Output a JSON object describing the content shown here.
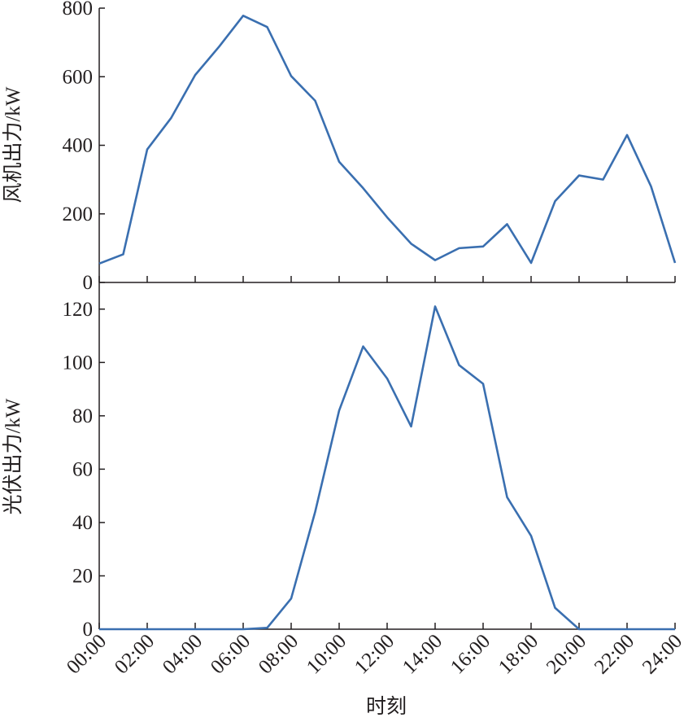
{
  "chart_data": [
    {
      "type": "line",
      "ylabel": "风机出力/kW",
      "ylim": [
        0,
        800
      ],
      "yticks": [
        0,
        200,
        400,
        600,
        800
      ],
      "xlim": [
        0,
        24
      ],
      "x": [
        0,
        1,
        2,
        3,
        4,
        5,
        6,
        7,
        8,
        9,
        10,
        11,
        12,
        13,
        14,
        15,
        16,
        17,
        18,
        19,
        20,
        21,
        22,
        23,
        24
      ],
      "series": [
        {
          "values": [
            55,
            82,
            388,
            480,
            605,
            688,
            778,
            745,
            602,
            530,
            352,
            275,
            190,
            113,
            65,
            100,
            105,
            170,
            57,
            237,
            312,
            300,
            430,
            280,
            57
          ]
        }
      ],
      "color": "#3a6fb0"
    },
    {
      "type": "line",
      "ylabel": "光伏出力/kW",
      "xlabel": "时刻",
      "ylim": [
        0,
        130
      ],
      "yticks": [
        0,
        20,
        40,
        60,
        80,
        100,
        120
      ],
      "xlim": [
        0,
        24
      ],
      "x": [
        0,
        1,
        2,
        3,
        4,
        5,
        6,
        7,
        8,
        9,
        10,
        11,
        12,
        13,
        14,
        15,
        16,
        17,
        18,
        19,
        20,
        21,
        22,
        23,
        24
      ],
      "xticklabels": [
        "00:00",
        "02:00",
        "04:00",
        "06:00",
        "08:00",
        "10:00",
        "12:00",
        "14:00",
        "16:00",
        "18:00",
        "20:00",
        "22:00",
        "24:00"
      ],
      "series": [
        {
          "values": [
            0,
            0,
            0,
            0,
            0,
            0,
            0,
            0.5,
            11.5,
            44,
            82,
            106,
            94,
            76,
            121,
            99,
            92,
            49.5,
            35,
            8,
            0,
            0,
            0,
            0,
            0
          ]
        }
      ],
      "color": "#3a6fb0"
    }
  ]
}
